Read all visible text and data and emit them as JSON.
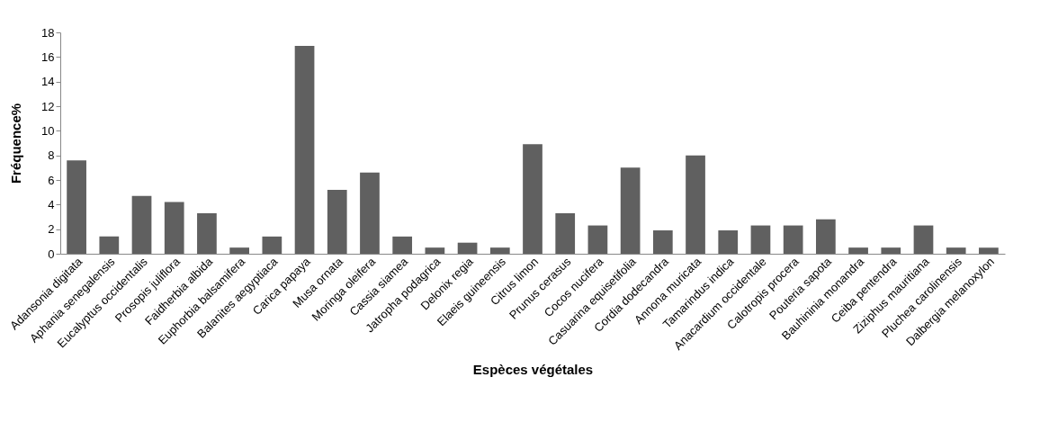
{
  "chart_data": {
    "type": "bar",
    "xlabel": "Espèces végétales",
    "ylabel": "Fréquence%",
    "categories": [
      "Adansonia digitata",
      "Aphania senegalensis",
      "Eucalyptus occidentalis",
      "Prosopis juliflora",
      "Faidherbia albida",
      "Euphorbia balsamifera",
      "Balanites aegyptiaca",
      "Carica papaya",
      "Musa ornata",
      "Moringa oleifera",
      "Cassia siamea",
      "Jatropha podagrica",
      "Delonix regia",
      "Elaeis guineensis",
      "Citrus limon",
      "Prunus cerasus",
      "Cocos nucifera",
      "Casuarina equisetifolia",
      "Cordia dodecandra",
      "Annona muricata",
      "Tamarindus indica",
      "Anacardium occidentale",
      "Calotropis procera",
      "Pouteria sapota",
      "Bauhininia monandra",
      "Ceiba pentendra",
      "Ziziphus mauritiana",
      "Pluchea carolinensis",
      "Dalbergia melanoxylon"
    ],
    "values": [
      7.6,
      1.4,
      4.7,
      4.2,
      3.3,
      0.5,
      1.4,
      16.9,
      5.2,
      6.6,
      1.4,
      0.5,
      0.9,
      0.5,
      8.9,
      3.3,
      2.3,
      7.0,
      1.9,
      8.0,
      1.9,
      2.3,
      2.3,
      2.8,
      0.5,
      0.5,
      2.3,
      0.5,
      0.5
    ],
    "color": "#606060",
    "ylim": [
      0,
      18
    ],
    "yticks": [
      0,
      2,
      4,
      6,
      8,
      10,
      12,
      14,
      16,
      18
    ],
    "grid": false
  }
}
